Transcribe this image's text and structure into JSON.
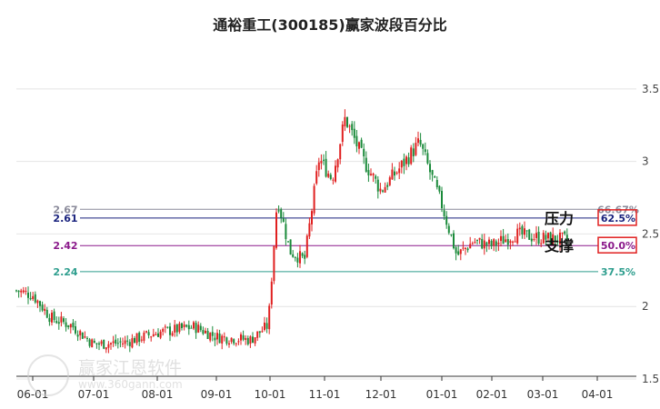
{
  "chart_data": {
    "type": "candlestick",
    "title": "通裕重工(300185)赢家波段百分比",
    "y_axis": {
      "range": [
        1.5,
        3.8
      ],
      "ticks": [
        {
          "value": 1.5,
          "label": "1.5"
        },
        {
          "value": 2,
          "label": "2"
        },
        {
          "value": 2.5,
          "label": "2.5"
        },
        {
          "value": 3,
          "label": "3"
        },
        {
          "value": 3.5,
          "label": "3.5"
        }
      ]
    },
    "x_axis": {
      "ticks": [
        "06-01",
        "07-01",
        "08-01",
        "09-01",
        "10-01",
        "11-01",
        "12-01",
        "01-01",
        "02-01",
        "03-01",
        "04-01"
      ]
    },
    "price_path": [
      {
        "date": "05-22",
        "close": 2.11
      },
      {
        "date": "06-01",
        "close": 2.08
      },
      {
        "date": "06-10",
        "close": 1.92
      },
      {
        "date": "06-20",
        "close": 1.87
      },
      {
        "date": "07-01",
        "close": 1.74
      },
      {
        "date": "07-15",
        "close": 1.75
      },
      {
        "date": "08-01",
        "close": 1.82
      },
      {
        "date": "08-20",
        "close": 1.86
      },
      {
        "date": "09-01",
        "close": 1.79
      },
      {
        "date": "09-20",
        "close": 1.77
      },
      {
        "date": "09-30",
        "close": 1.87
      },
      {
        "date": "10-05",
        "close": 2.75
      },
      {
        "date": "10-12",
        "close": 2.38
      },
      {
        "date": "10-20",
        "close": 2.32
      },
      {
        "date": "10-28",
        "close": 3.02
      },
      {
        "date": "11-05",
        "close": 2.88
      },
      {
        "date": "11-12",
        "close": 3.3
      },
      {
        "date": "11-22",
        "close": 3.0
      },
      {
        "date": "12-01",
        "close": 2.8
      },
      {
        "date": "12-10",
        "close": 2.95
      },
      {
        "date": "12-20",
        "close": 3.13
      },
      {
        "date": "01-01",
        "close": 2.7
      },
      {
        "date": "01-10",
        "close": 2.35
      },
      {
        "date": "01-20",
        "close": 2.45
      },
      {
        "date": "02-01",
        "close": 2.42
      },
      {
        "date": "02-15",
        "close": 2.5
      },
      {
        "date": "03-01",
        "close": 2.47
      },
      {
        "date": "03-15",
        "close": 2.46
      }
    ],
    "levels": [
      {
        "value": 2.67,
        "left_label": "2.67",
        "right_label": "66.67%",
        "color": "#8a8a9a"
      },
      {
        "value": 2.61,
        "left_label": "2.61",
        "right_label": "62.5%",
        "color": "#1a237e",
        "boxed": true
      },
      {
        "value": 2.42,
        "left_label": "2.42",
        "right_label": "50.0%",
        "color": "#8b1a8b",
        "boxed": true
      },
      {
        "value": 2.24,
        "left_label": "2.24",
        "right_label": "37.5%",
        "color": "#2e9e8e"
      }
    ],
    "annotations": [
      {
        "text": "压力",
        "level": 2.61
      },
      {
        "text": "支撑",
        "level": 2.42
      }
    ],
    "colors": {
      "up": "#e02020",
      "down": "#1a8a3a"
    }
  },
  "watermark": {
    "text": "赢家江恩软件",
    "url": "www.360gann.com",
    "seal": "赢"
  }
}
